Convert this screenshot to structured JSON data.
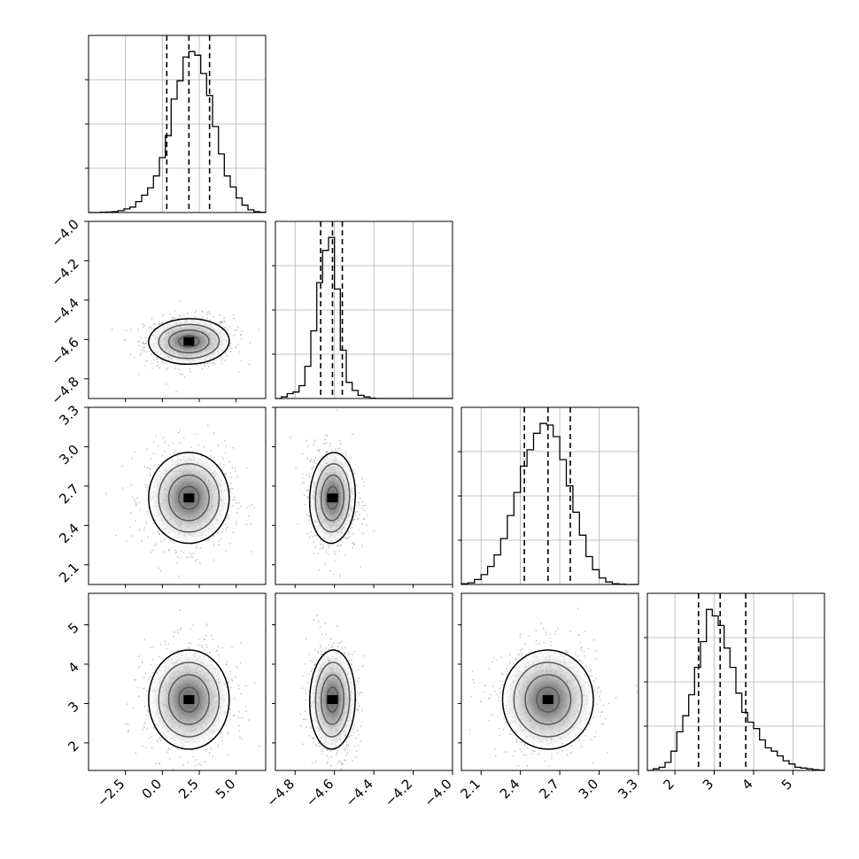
{
  "chart_data": {
    "type": "corner",
    "grid": true,
    "params": [
      {
        "range": [
          -5.0,
          7.0
        ],
        "ticks": [
          -2.5,
          0.0,
          2.5,
          5.0
        ],
        "tick_labels": [
          "−2.5",
          "0.0",
          "2.5",
          "5.0"
        ],
        "quantiles": [
          0.3,
          1.8,
          3.2
        ],
        "mean": 1.8,
        "sd": 1.3
      },
      {
        "range": [
          -4.9,
          -4.0
        ],
        "ticks": [
          -4.8,
          -4.6,
          -4.4,
          -4.2,
          -4.0
        ],
        "tick_labels": [
          "−4.8",
          "−4.6",
          "−4.4",
          "−4.2",
          "−4.0"
        ],
        "quantiles": [
          -4.67,
          -4.61,
          -4.56
        ],
        "mean": -4.61,
        "sd": 0.055
      },
      {
        "range": [
          1.95,
          3.3
        ],
        "ticks": [
          2.1,
          2.4,
          2.7,
          3.0,
          3.3
        ],
        "tick_labels": [
          "2.1",
          "2.4",
          "2.7",
          "3.0",
          "3.3"
        ],
        "quantiles": [
          2.43,
          2.61,
          2.78
        ],
        "mean": 2.61,
        "sd": 0.165
      },
      {
        "range": [
          1.3,
          5.8
        ],
        "ticks": [
          2,
          3,
          4,
          5
        ],
        "tick_labels": [
          "2",
          "3",
          "4",
          "5"
        ],
        "quantiles": [
          2.6,
          3.15,
          3.8
        ],
        "mean": 3.1,
        "sd": 0.6
      }
    ],
    "histograms": [
      {
        "param": 0,
        "bin_edges": [
          -5,
          -4.6,
          -4.2,
          -3.8,
          -3.4,
          -3,
          -2.6,
          -2.2,
          -1.8,
          -1.4,
          -1,
          -0.6,
          -0.2,
          0.2,
          0.6,
          1,
          1.4,
          1.8,
          2.2,
          2.6,
          3,
          3.4,
          3.8,
          4.2,
          4.6,
          5,
          5.4,
          5.8,
          6.2,
          6.6,
          7
        ],
        "counts": [
          0,
          0,
          2,
          3,
          5,
          10,
          20,
          30,
          60,
          95,
          135,
          200,
          300,
          420,
          620,
          720,
          850,
          880,
          860,
          760,
          640,
          470,
          320,
          200,
          140,
          80,
          40,
          15,
          5,
          2
        ]
      },
      {
        "param": 1,
        "bin_edges": [
          -4.9,
          -4.87,
          -4.84,
          -4.81,
          -4.78,
          -4.75,
          -4.72,
          -4.69,
          -4.66,
          -4.63,
          -4.6,
          -4.57,
          -4.54,
          -4.51,
          -4.48,
          -4.45,
          -4.42,
          -4.39,
          -4.36,
          -4.33,
          -4.3,
          -4.27,
          -4.24,
          -4.21,
          -4.18,
          -4.15,
          -4.12,
          -4.09,
          -4.06,
          -4.03,
          -4.0
        ],
        "counts": [
          0,
          10,
          30,
          40,
          80,
          200,
          420,
          720,
          920,
          1000,
          680,
          300,
          100,
          50,
          20,
          10,
          2,
          0,
          0,
          0,
          0,
          0,
          0,
          0,
          0,
          0,
          0,
          0,
          0,
          0
        ]
      },
      {
        "param": 2,
        "bin_edges": [
          1.95,
          2.0,
          2.05,
          2.1,
          2.15,
          2.2,
          2.25,
          2.3,
          2.35,
          2.4,
          2.45,
          2.5,
          2.55,
          2.6,
          2.65,
          2.7,
          2.75,
          2.8,
          2.85,
          2.9,
          2.95,
          3.0,
          3.05,
          3.1,
          3.15,
          3.2,
          3.25,
          3.3
        ],
        "counts": [
          5,
          10,
          30,
          60,
          110,
          180,
          280,
          420,
          560,
          720,
          820,
          920,
          980,
          970,
          900,
          760,
          600,
          440,
          300,
          170,
          90,
          40,
          15,
          5,
          2,
          0,
          0
        ]
      },
      {
        "param": 3,
        "bin_edges": [
          1.3,
          1.45,
          1.6,
          1.75,
          1.9,
          2.05,
          2.2,
          2.35,
          2.5,
          2.65,
          2.8,
          2.95,
          3.1,
          3.25,
          3.4,
          3.55,
          3.7,
          3.85,
          4.0,
          4.15,
          4.3,
          4.45,
          4.6,
          4.75,
          4.9,
          5.05,
          5.2,
          5.35,
          5.5,
          5.65,
          5.8
        ],
        "counts": [
          0,
          10,
          20,
          50,
          120,
          240,
          340,
          470,
          640,
          800,
          1000,
          960,
          900,
          760,
          640,
          480,
          360,
          300,
          260,
          190,
          140,
          120,
          90,
          60,
          40,
          20,
          15,
          10,
          5,
          2
        ]
      }
    ],
    "pairs": [
      {
        "x": 0,
        "y": 1,
        "corr": 0.05
      },
      {
        "x": 0,
        "y": 2,
        "corr": 0.0
      },
      {
        "x": 1,
        "y": 2,
        "corr": -0.1
      },
      {
        "x": 0,
        "y": 3,
        "corr": 0.0
      },
      {
        "x": 1,
        "y": 3,
        "corr": -0.05
      },
      {
        "x": 2,
        "y": 3,
        "corr": 0.05
      }
    ],
    "contour_levels_sigma": [
      0.5,
      1.0,
      1.5,
      2.0
    ]
  }
}
